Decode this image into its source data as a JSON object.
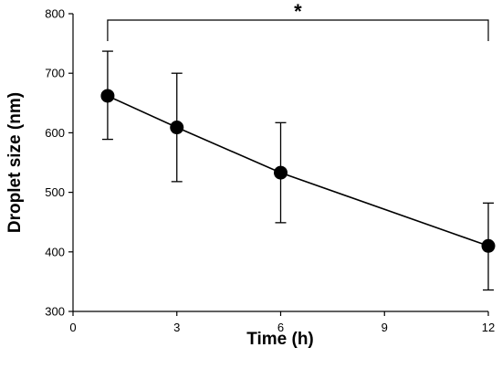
{
  "chart_data": {
    "type": "line",
    "title": "",
    "xlabel": "Time (h)",
    "ylabel": "Droplet size (nm)",
    "xlim": [
      0,
      12
    ],
    "ylim": [
      300,
      800
    ],
    "xticks": [
      0,
      3,
      6,
      9,
      12
    ],
    "yticks": [
      300,
      400,
      500,
      600,
      700,
      800
    ],
    "grid": false,
    "legend": "none",
    "series": [
      {
        "x": [
          1,
          3,
          6,
          12
        ],
        "y": [
          662,
          609,
          533,
          410
        ],
        "err_low": [
          589,
          518,
          449,
          336
        ],
        "err_high": [
          737,
          700,
          617,
          482
        ],
        "color": "#000000",
        "marker": "circle"
      }
    ],
    "annotations": [
      {
        "type": "bracket",
        "x_from": 1,
        "x_to": 12,
        "label": "*"
      }
    ]
  }
}
